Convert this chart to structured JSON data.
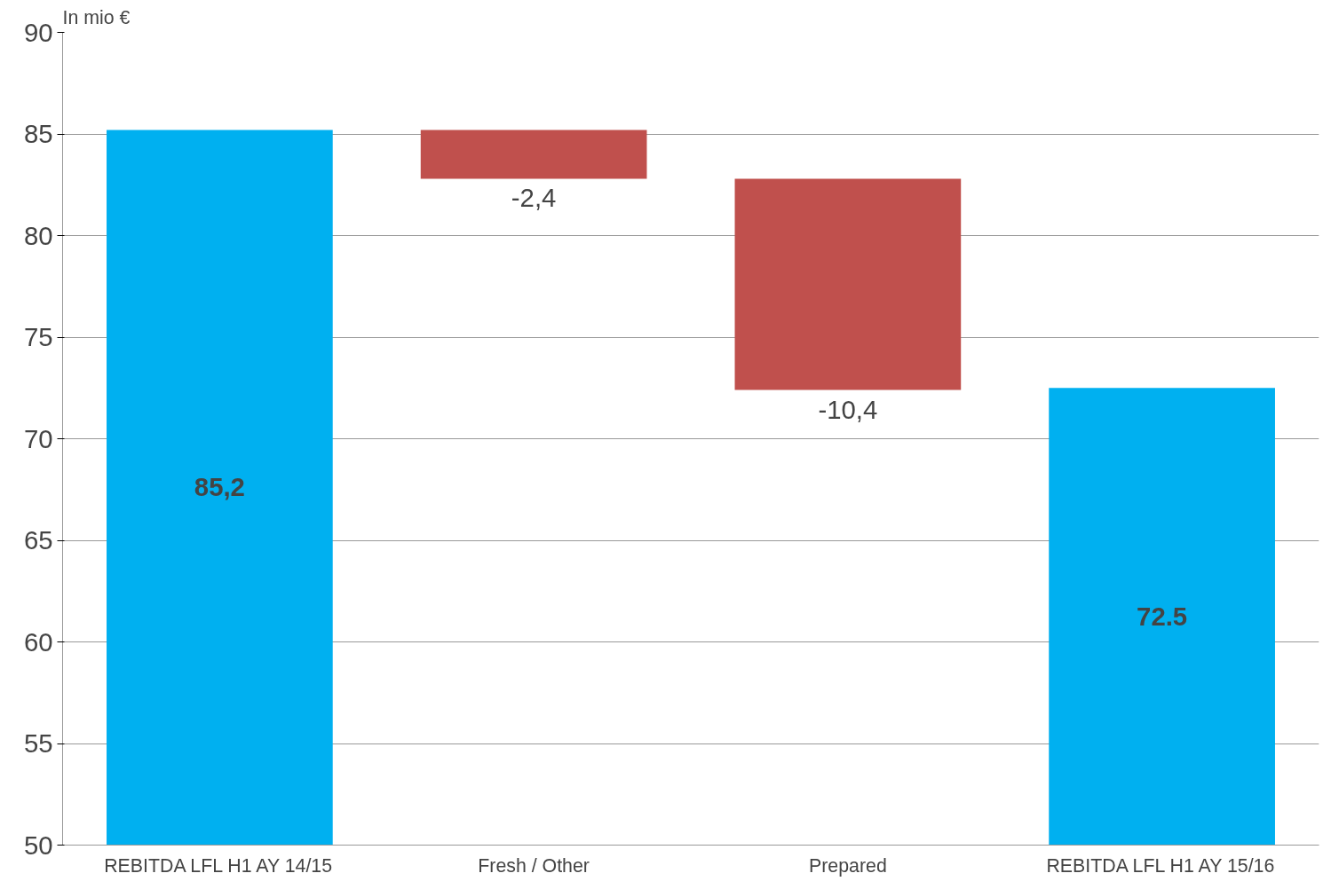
{
  "chart_data": {
    "type": "bar",
    "ylabel": "In mio €",
    "categories": [
      "REBITDA LFL H1 AY 14/15",
      "Fresh / Other",
      "Prepared",
      "REBITDA LFL H1 AY 15/16"
    ],
    "values": [
      85.2,
      -2.4,
      -10.4,
      72.5
    ],
    "base": [
      null,
      85.2,
      82.8,
      null
    ],
    "colors": [
      "#00b0f0",
      "#c0504d",
      "#c0504d",
      "#00b0f0"
    ],
    "value_labels": [
      "85,2",
      "-2,4",
      "-10,4",
      "72.5"
    ],
    "ylim": [
      50,
      90
    ],
    "yticks": [
      50,
      55,
      60,
      65,
      70,
      75,
      80,
      85,
      90
    ],
    "grid": "y"
  }
}
